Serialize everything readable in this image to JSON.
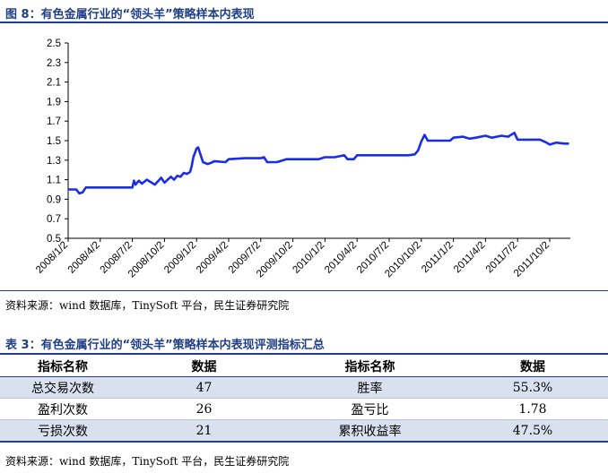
{
  "figure": {
    "caption": "图 8：有色金属行业的“领头羊”策略样本内表现",
    "source": "资料来源：wind 数据库，TinySoft 平台，民生证券研究院"
  },
  "chart_data": {
    "type": "line",
    "title": "",
    "xlabel": "",
    "ylabel": "",
    "ylim": [
      0.5,
      2.5
    ],
    "yticks": [
      "2.5",
      "2.3",
      "2.1",
      "1.9",
      "1.7",
      "1.5",
      "1.3",
      "1.1",
      "0.9",
      "0.7",
      "0.5"
    ],
    "xticks": [
      "2008/1/2",
      "2008/4/2",
      "2008/7/2",
      "2008/10/2",
      "2009/1/2",
      "2009/4/2",
      "2009/7/2",
      "2009/10/2",
      "2010/1/2",
      "2010/4/2",
      "2010/7/2",
      "2010/10/2",
      "2011/1/2",
      "2011/4/2",
      "2011/7/2",
      "2011/10/2"
    ],
    "line_color": "#1a2de6",
    "series": [
      {
        "x": [
          0,
          0.25,
          0.35,
          0.45,
          0.55,
          1.0,
          1.5,
          1.7,
          1.85,
          2.0,
          2.05,
          2.1,
          2.2,
          2.3,
          2.45,
          2.6,
          2.7,
          2.9,
          3.0,
          3.1,
          3.2,
          3.3,
          3.4,
          3.5,
          3.6,
          3.7,
          3.8,
          3.85,
          3.9,
          4.0,
          4.05,
          4.2,
          4.35,
          4.5,
          4.55,
          4.9,
          5.0,
          5.5,
          5.7,
          6.0,
          6.1,
          6.2,
          6.25,
          6.5,
          6.8,
          7.0,
          7.3,
          7.5,
          7.8,
          8.0,
          8.3,
          8.6,
          8.7,
          8.9,
          9.0,
          9.5,
          10.0,
          10.3,
          10.6,
          10.8,
          10.9,
          11.0,
          11.1,
          11.2,
          11.3,
          11.5,
          11.7,
          11.9,
          12.0,
          12.3,
          12.5,
          12.7,
          13.0,
          13.2,
          13.5,
          13.7,
          13.8,
          13.9,
          14.0,
          14.3,
          14.5,
          14.7,
          14.9,
          15.0,
          15.2,
          15.45,
          15.6
        ],
        "y": [
          1.0,
          1.0,
          0.96,
          0.97,
          1.02,
          1.02,
          1.02,
          1.02,
          1.02,
          1.02,
          1.09,
          1.05,
          1.09,
          1.06,
          1.1,
          1.07,
          1.05,
          1.12,
          1.07,
          1.1,
          1.13,
          1.1,
          1.14,
          1.13,
          1.17,
          1.16,
          1.18,
          1.24,
          1.33,
          1.42,
          1.43,
          1.28,
          1.26,
          1.28,
          1.29,
          1.28,
          1.31,
          1.32,
          1.32,
          1.32,
          1.33,
          1.28,
          1.28,
          1.28,
          1.31,
          1.31,
          1.31,
          1.31,
          1.31,
          1.33,
          1.33,
          1.35,
          1.31,
          1.31,
          1.35,
          1.35,
          1.35,
          1.35,
          1.35,
          1.36,
          1.4,
          1.49,
          1.56,
          1.5,
          1.5,
          1.5,
          1.5,
          1.5,
          1.53,
          1.54,
          1.52,
          1.53,
          1.55,
          1.53,
          1.55,
          1.54,
          1.56,
          1.58,
          1.51,
          1.51,
          1.51,
          1.51,
          1.48,
          1.46,
          1.48,
          1.47,
          1.47
        ]
      }
    ]
  },
  "table": {
    "caption": "表 3：有色金属行业的“领头羊”策略样本内表现评测指标汇总",
    "headers": [
      "指标名称",
      "数据",
      "指标名称",
      "数据"
    ],
    "rows": [
      [
        "总交易次数",
        "47",
        "胜率",
        "55.3%"
      ],
      [
        "盈利次数",
        "26",
        "盈亏比",
        "1.78"
      ],
      [
        "亏损次数",
        "21",
        "累积收益率",
        "47.5%"
      ]
    ],
    "source": "资料来源：wind 数据库，TinySoft 平台，民生证券研究院"
  }
}
